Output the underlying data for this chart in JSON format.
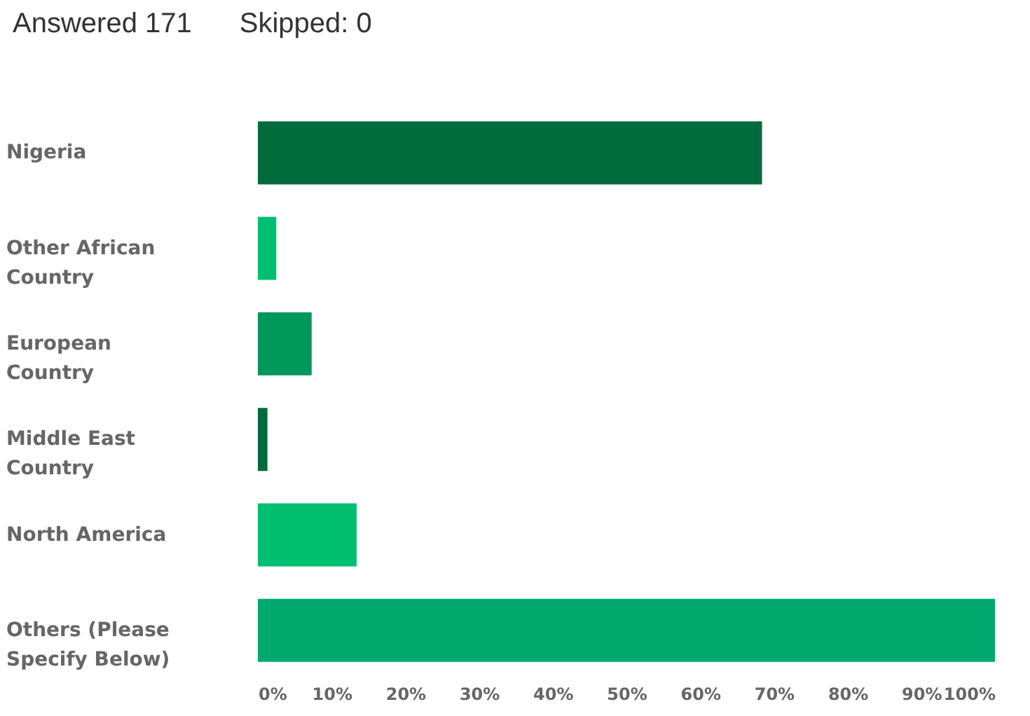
{
  "chart_data": {
    "type": "bar",
    "orientation": "horizontal",
    "annotations": [
      "Answered 171",
      "Skipped: 0"
    ],
    "categories": [
      "Nigeria",
      "Other African Country",
      "European Country",
      "Middle East Country",
      "North America",
      "Others (Please Specify Below)"
    ],
    "values": [
      68.4,
      2.5,
      7.3,
      1.3,
      13.4,
      100
    ],
    "colors": [
      "#006b3c",
      "#00bf6f",
      "#00975a",
      "#006b3c",
      "#00bf6f",
      "#00aa6e"
    ],
    "xlim": [
      0,
      100
    ],
    "xticks": [
      {
        "value": 0,
        "label": "0%"
      },
      {
        "value": 10,
        "label": "10%"
      },
      {
        "value": 20,
        "label": "20%"
      },
      {
        "value": 30,
        "label": "30%"
      },
      {
        "value": 40,
        "label": "40%"
      },
      {
        "value": 50,
        "label": "50%"
      },
      {
        "value": 60,
        "label": "60%"
      },
      {
        "value": 70,
        "label": "70%"
      },
      {
        "value": 80,
        "label": "80%"
      },
      {
        "value": 90,
        "label": "90%"
      },
      {
        "value": 100,
        "label": "100%"
      }
    ],
    "grid": false
  }
}
